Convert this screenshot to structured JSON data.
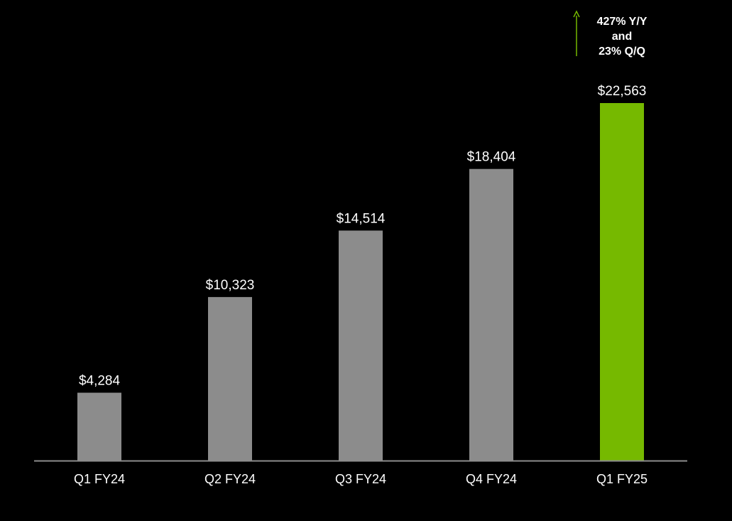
{
  "chart_data": {
    "type": "bar",
    "title": "",
    "xlabel": "",
    "ylabel": "",
    "categories": [
      "Q1 FY24",
      "Q2 FY24",
      "Q3 FY24",
      "Q4 FY24",
      "Q1 FY25"
    ],
    "values": [
      4284,
      10323,
      14514,
      18404,
      22563
    ],
    "value_labels": [
      "$4,284",
      "$10,323",
      "$14,514",
      "$18,404",
      "$22,563"
    ],
    "ylim": [
      0,
      24500
    ],
    "grid": false,
    "legend": "none",
    "colors": {
      "background": "#000000",
      "bar_default": "#8c8c8c",
      "bar_highlight": "#76b900",
      "axis": "#8c8c8c",
      "arrow": "#76b900",
      "text": "#ffffff"
    },
    "highlight_index": 4,
    "annotation": {
      "lines": [
        "427% Y/Y",
        "and",
        "23% Q/Q"
      ],
      "target_index": 4,
      "icon": "up-arrow-icon"
    }
  }
}
